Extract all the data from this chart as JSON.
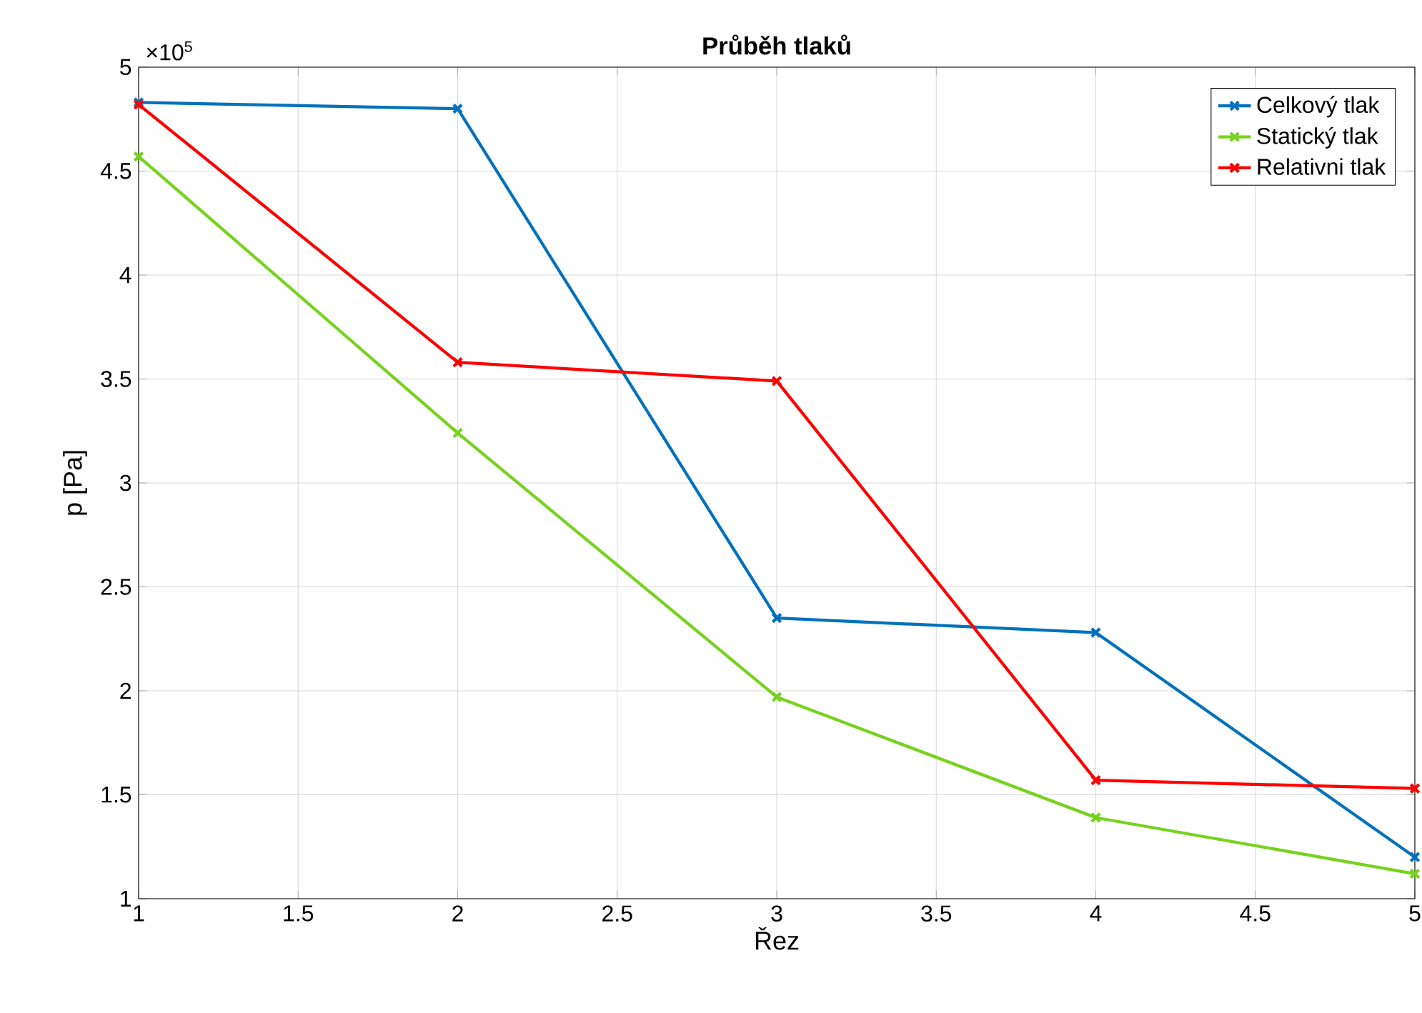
{
  "chart_data": {
    "type": "line",
    "title": "Průběh tlaků",
    "xlabel": "Řez",
    "ylabel": "p [Pa]",
    "x": [
      1,
      2,
      3,
      4,
      5
    ],
    "series": [
      {
        "name": "Celkový tlak",
        "color": "#0072bd",
        "values": [
          4.83,
          4.8,
          2.35,
          2.28,
          1.2
        ]
      },
      {
        "name": "Statický tlak",
        "color": "#77d21e",
        "values": [
          4.57,
          3.24,
          1.97,
          1.39,
          1.12
        ]
      },
      {
        "name": "Relativni tlak",
        "color": "#ff0000",
        "values": [
          4.82,
          3.58,
          3.49,
          1.57,
          1.53
        ]
      }
    ],
    "xlim": [
      1,
      5
    ],
    "ylim": [
      1,
      5
    ],
    "xticks": [
      1,
      1.5,
      2,
      2.5,
      3,
      3.5,
      4,
      4.5,
      5
    ],
    "yticks": [
      1,
      1.5,
      2,
      2.5,
      3,
      3.5,
      4,
      4.5,
      5
    ],
    "annotations": [
      "×10$^{5}$"
    ],
    "grid": true,
    "legend": "top right",
    "marker": "cross",
    "line_style": "solid"
  }
}
